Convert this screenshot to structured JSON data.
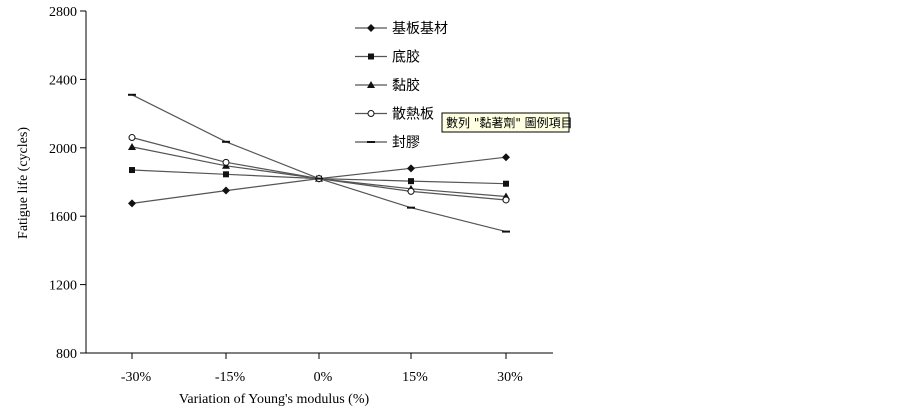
{
  "chart_data": {
    "type": "line",
    "xlabel": "Variation of Young's modulus (%)",
    "ylabel": "Fatigue life (cycles)",
    "categories": [
      "-30%",
      "-15%",
      "0%",
      "15%",
      "30%"
    ],
    "ylim": [
      800,
      2800
    ],
    "yticks": [
      800,
      1200,
      1600,
      2000,
      2400,
      2800
    ],
    "grid": false,
    "legend_position": "top-right",
    "series": [
      {
        "name": "基板基材",
        "marker": "diamond-filled",
        "values": [
          1675,
          1750,
          1820,
          1880,
          1945
        ]
      },
      {
        "name": "底胶",
        "marker": "square-filled",
        "values": [
          1870,
          1845,
          1820,
          1805,
          1790
        ]
      },
      {
        "name": "黏胶",
        "marker": "triangle-filled",
        "values": [
          2005,
          1895,
          1820,
          1760,
          1715
        ]
      },
      {
        "name": "散熱板",
        "marker": "circle-open",
        "values": [
          2060,
          1915,
          1820,
          1745,
          1695
        ]
      },
      {
        "name": "封膠",
        "marker": "dash",
        "values": [
          2310,
          2035,
          1820,
          1650,
          1510
        ]
      }
    ],
    "tooltip": "數列 \"黏著劑\" 圖例項目"
  },
  "colors": {
    "line": "#555555",
    "marker": "#111111",
    "axis": "#000000",
    "tooltip_bg": "#ffffe1"
  }
}
